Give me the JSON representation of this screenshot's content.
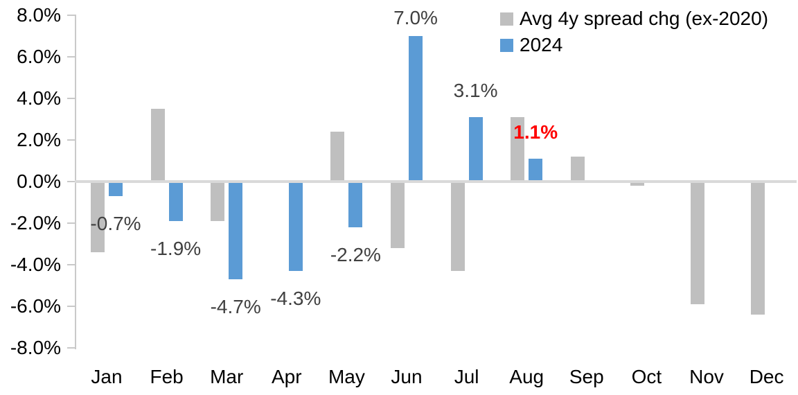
{
  "chart_data": {
    "type": "bar",
    "title": "",
    "xlabel": "",
    "ylabel": "",
    "categories": [
      "Jan",
      "Feb",
      "Mar",
      "Apr",
      "May",
      "Jun",
      "Jul",
      "Aug",
      "Sep",
      "Oct",
      "Nov",
      "Dec"
    ],
    "series": [
      {
        "name": "Avg 4y spread chg (ex-2020)",
        "color": "#bfbfbf",
        "values": [
          -3.4,
          3.5,
          -1.9,
          0.0,
          2.4,
          -3.2,
          -4.3,
          3.1,
          1.2,
          -0.2,
          -5.9,
          -6.4
        ]
      },
      {
        "name": "2024",
        "color": "#5b9bd5",
        "values": [
          -0.7,
          -1.9,
          -4.7,
          -4.3,
          -2.2,
          7.0,
          3.1,
          1.1,
          null,
          null,
          null,
          null
        ]
      }
    ],
    "data_labels": [
      {
        "month": "Jan",
        "series": "2024",
        "text": "-0.7%",
        "color": "#404040",
        "bold": false
      },
      {
        "month": "Feb",
        "series": "2024",
        "text": "-1.9%",
        "color": "#404040",
        "bold": false
      },
      {
        "month": "Mar",
        "series": "2024",
        "text": "-4.7%",
        "color": "#404040",
        "bold": false
      },
      {
        "month": "Apr",
        "series": "2024",
        "text": "-4.3%",
        "color": "#404040",
        "bold": false
      },
      {
        "month": "May",
        "series": "2024",
        "text": "-2.2%",
        "color": "#404040",
        "bold": false
      },
      {
        "month": "Jun",
        "series": "2024",
        "text": "7.0%",
        "color": "#404040",
        "bold": false
      },
      {
        "month": "Jul",
        "series": "2024",
        "text": "3.1%",
        "color": "#404040",
        "bold": false
      },
      {
        "month": "Aug",
        "series": "2024",
        "text": "1.1%",
        "color": "#ff0000",
        "bold": true
      }
    ],
    "y_axis": {
      "min": -8,
      "max": 8,
      "step": 2,
      "tick_labels": [
        "8.0%",
        "6.0%",
        "4.0%",
        "2.0%",
        "0.0%",
        "-2.0%",
        "-4.0%",
        "-6.0%",
        "-8.0%"
      ]
    },
    "legend": {
      "position": "top-right",
      "entries": [
        "Avg 4y spread chg (ex-2020)",
        "2024"
      ]
    },
    "grid": "zero-line-only",
    "colors": {
      "axis": "#c9c9c9",
      "zero_line": "#d9d9d9",
      "tick_text": "#000000"
    }
  }
}
